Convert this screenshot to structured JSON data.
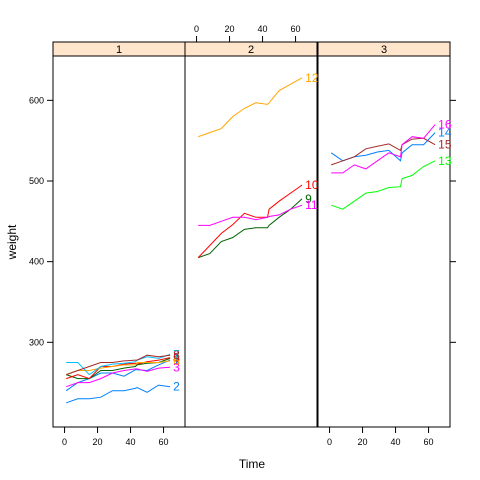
{
  "chart_data": {
    "type": "line",
    "xlabel": "Time",
    "ylabel": "weight",
    "xlim": [
      -7,
      73
    ],
    "ylim": [
      195,
      655
    ],
    "xticks": [
      0,
      20,
      40,
      60
    ],
    "yticks": [
      300,
      400,
      500,
      600
    ],
    "colors": {
      "blue": "#0080ff",
      "magenta": "#ff00ff",
      "darkgreen": "#006400",
      "red": "#ff0000",
      "orange": "#ffa500",
      "green": "#00ff00",
      "brown": "#a52a2a",
      "cyan": "#00bfff",
      "strip": "#ffe5cc"
    },
    "panels": [
      {
        "strip": "1",
        "series": [
          {
            "name": "1",
            "color": "#0080ff",
            "x": [
              1,
              8,
              15,
              22,
              29,
              36,
              43,
              44,
              50,
              57,
              64
            ],
            "y": [
              240,
              250,
              255,
              262,
              262,
              258,
              266,
              266,
              265,
              272,
              278
            ]
          },
          {
            "name": "2",
            "color": "#0080ff",
            "x": [
              1,
              8,
              15,
              22,
              29,
              36,
              43,
              44,
              50,
              57,
              64
            ],
            "y": [
              225,
              230,
              230,
              232,
              240,
              240,
              243,
              244,
              238,
              247,
              245
            ]
          },
          {
            "name": "3",
            "color": "#ff00ff",
            "x": [
              1,
              8,
              15,
              22,
              29,
              36,
              43,
              44,
              50,
              57,
              64
            ],
            "y": [
              245,
              250,
              250,
              255,
              262,
              265,
              267,
              267,
              264,
              268,
              269
            ]
          },
          {
            "name": "4",
            "color": "#006400",
            "x": [
              1,
              8,
              15,
              22,
              29,
              36,
              43,
              44,
              50,
              57,
              64
            ],
            "y": [
              260,
              255,
              255,
              265,
              265,
              268,
              270,
              272,
              274,
              275,
              280
            ]
          },
          {
            "name": "5",
            "color": "#ff0000",
            "x": [
              1,
              8,
              15,
              22,
              29,
              36,
              43,
              44,
              50,
              57,
              64
            ],
            "y": [
              255,
              260,
              255,
              270,
              270,
              273,
              274,
              273,
              276,
              278,
              281
            ]
          },
          {
            "name": "6",
            "color": "#ffa500",
            "x": [
              1,
              8,
              15,
              22,
              29,
              36,
              43,
              44,
              50,
              57,
              64
            ],
            "y": [
              260,
              265,
              265,
              268,
              270,
              272,
              272,
              275,
              275,
              275,
              277
            ]
          },
          {
            "name": "7",
            "color": "#00bfff",
            "x": [
              1,
              8,
              15,
              22,
              29,
              36,
              43,
              44,
              50,
              57,
              64
            ],
            "y": [
              275,
              275,
              260,
              270,
              273,
              274,
              276,
              278,
              282,
              280,
              285
            ]
          },
          {
            "name": "8",
            "color": "#a52a2a",
            "x": [
              1,
              8,
              15,
              22,
              29,
              36,
              43,
              44,
              50,
              57,
              64
            ],
            "y": [
              260,
              265,
              270,
              275,
              275,
              277,
              278,
              278,
              284,
              282,
              284
            ]
          }
        ]
      },
      {
        "strip": "2",
        "series": [
          {
            "name": "9",
            "color": "#006400",
            "x": [
              1,
              8,
              15,
              22,
              29,
              36,
              43,
              44,
              50,
              57,
              64
            ],
            "y": [
              405,
              410,
              425,
              430,
              440,
              442,
              442,
              445,
              455,
              465,
              478
            ]
          },
          {
            "name": "10",
            "color": "#ff0000",
            "x": [
              1,
              8,
              15,
              22,
              29,
              36,
              43,
              44,
              50,
              57,
              64
            ],
            "y": [
              405,
              420,
              435,
              446,
              460,
              455,
              455,
              465,
              475,
              485,
              495
            ]
          },
          {
            "name": "11",
            "color": "#ff00ff",
            "x": [
              1,
              8,
              15,
              22,
              29,
              36,
              43,
              44,
              50,
              57,
              64
            ],
            "y": [
              445,
              445,
              450,
              455,
              455,
              452,
              455,
              456,
              458,
              465,
              470
            ]
          },
          {
            "name": "12",
            "color": "#ffa500",
            "x": [
              1,
              8,
              15,
              22,
              29,
              36,
              43,
              44,
              50,
              57,
              64
            ],
            "y": [
              555,
              560,
              565,
              580,
              590,
              597,
              595,
              597,
              612,
              620,
              628
            ]
          }
        ]
      },
      {
        "strip": "3",
        "series": [
          {
            "name": "13",
            "color": "#00ff00",
            "x": [
              1,
              8,
              15,
              22,
              29,
              36,
              43,
              44,
              50,
              57,
              64
            ],
            "y": [
              470,
              465,
              475,
              485,
              487,
              492,
              493,
              503,
              507,
              518,
              525
            ]
          },
          {
            "name": "14",
            "color": "#0080ff",
            "x": [
              1,
              8,
              15,
              22,
              29,
              36,
              43,
              44,
              50,
              57,
              64
            ],
            "y": [
              535,
              525,
              530,
              532,
              536,
              538,
              525,
              535,
              545,
              545,
              560
            ]
          },
          {
            "name": "15",
            "color": "#a52a2a",
            "x": [
              1,
              8,
              15,
              22,
              29,
              36,
              43,
              44,
              50,
              57,
              64
            ],
            "y": [
              520,
              525,
              530,
              540,
              543,
              546,
              538,
              545,
              552,
              553,
              545
            ]
          },
          {
            "name": "16",
            "color": "#ff00ff",
            "x": [
              1,
              8,
              15,
              22,
              29,
              36,
              43,
              44,
              50,
              57,
              64
            ],
            "y": [
              510,
              510,
              520,
              515,
              525,
              535,
              530,
              545,
              555,
              553,
              570
            ]
          }
        ]
      }
    ]
  }
}
